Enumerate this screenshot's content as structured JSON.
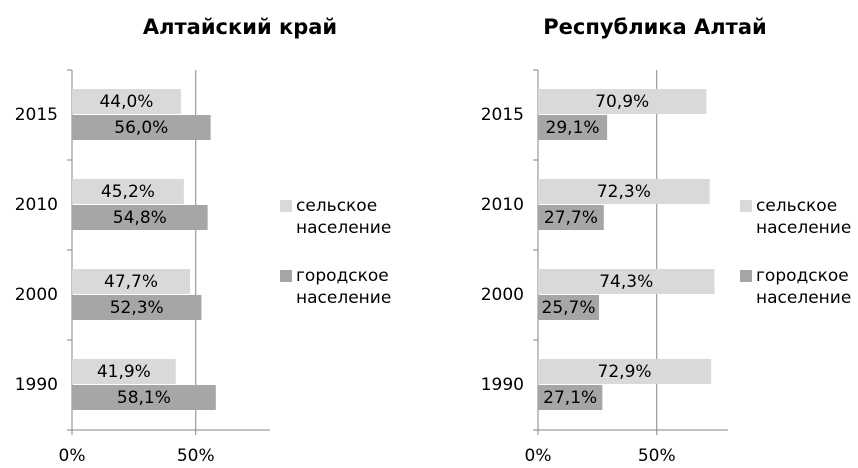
{
  "chart_data": [
    {
      "type": "bar",
      "orientation": "horizontal",
      "title": "Алтайский край",
      "categories": [
        "2015",
        "2010",
        "2000",
        "1990"
      ],
      "series": [
        {
          "name": "сельское население",
          "color": "#d9d9d9",
          "values": [
            44.0,
            45.2,
            47.7,
            41.9
          ],
          "value_labels": [
            "44,0%",
            "45,2%",
            "47,7%",
            "41,9%"
          ]
        },
        {
          "name": "городское население",
          "color": "#a6a6a6",
          "values": [
            56.0,
            54.8,
            52.3,
            58.1
          ],
          "value_labels": [
            "56,0%",
            "54,8%",
            "52,3%",
            "58,1%"
          ]
        }
      ],
      "xlim": [
        0,
        80
      ],
      "xticks": [
        {
          "value": 0,
          "label": "0%"
        },
        {
          "value": 50,
          "label": "50%"
        }
      ],
      "grid": true,
      "legend": "right"
    },
    {
      "type": "bar",
      "orientation": "horizontal",
      "title": "Республика Алтай",
      "categories": [
        "2015",
        "2010",
        "2000",
        "1990"
      ],
      "series": [
        {
          "name": "сельское население",
          "color": "#d9d9d9",
          "values": [
            70.9,
            72.3,
            74.3,
            72.9
          ],
          "value_labels": [
            "70,9%",
            "72,3%",
            "74,3%",
            "72,9%"
          ]
        },
        {
          "name": "городское население",
          "color": "#a6a6a6",
          "values": [
            29.1,
            27.7,
            25.7,
            27.1
          ],
          "value_labels": [
            "29,1%",
            "27,7%",
            "25,7%",
            "27,1%"
          ]
        }
      ],
      "xlim": [
        0,
        80
      ],
      "xticks": [
        {
          "value": 0,
          "label": "0%"
        },
        {
          "value": 50,
          "label": "50%"
        }
      ],
      "grid": true,
      "legend": "right"
    }
  ]
}
